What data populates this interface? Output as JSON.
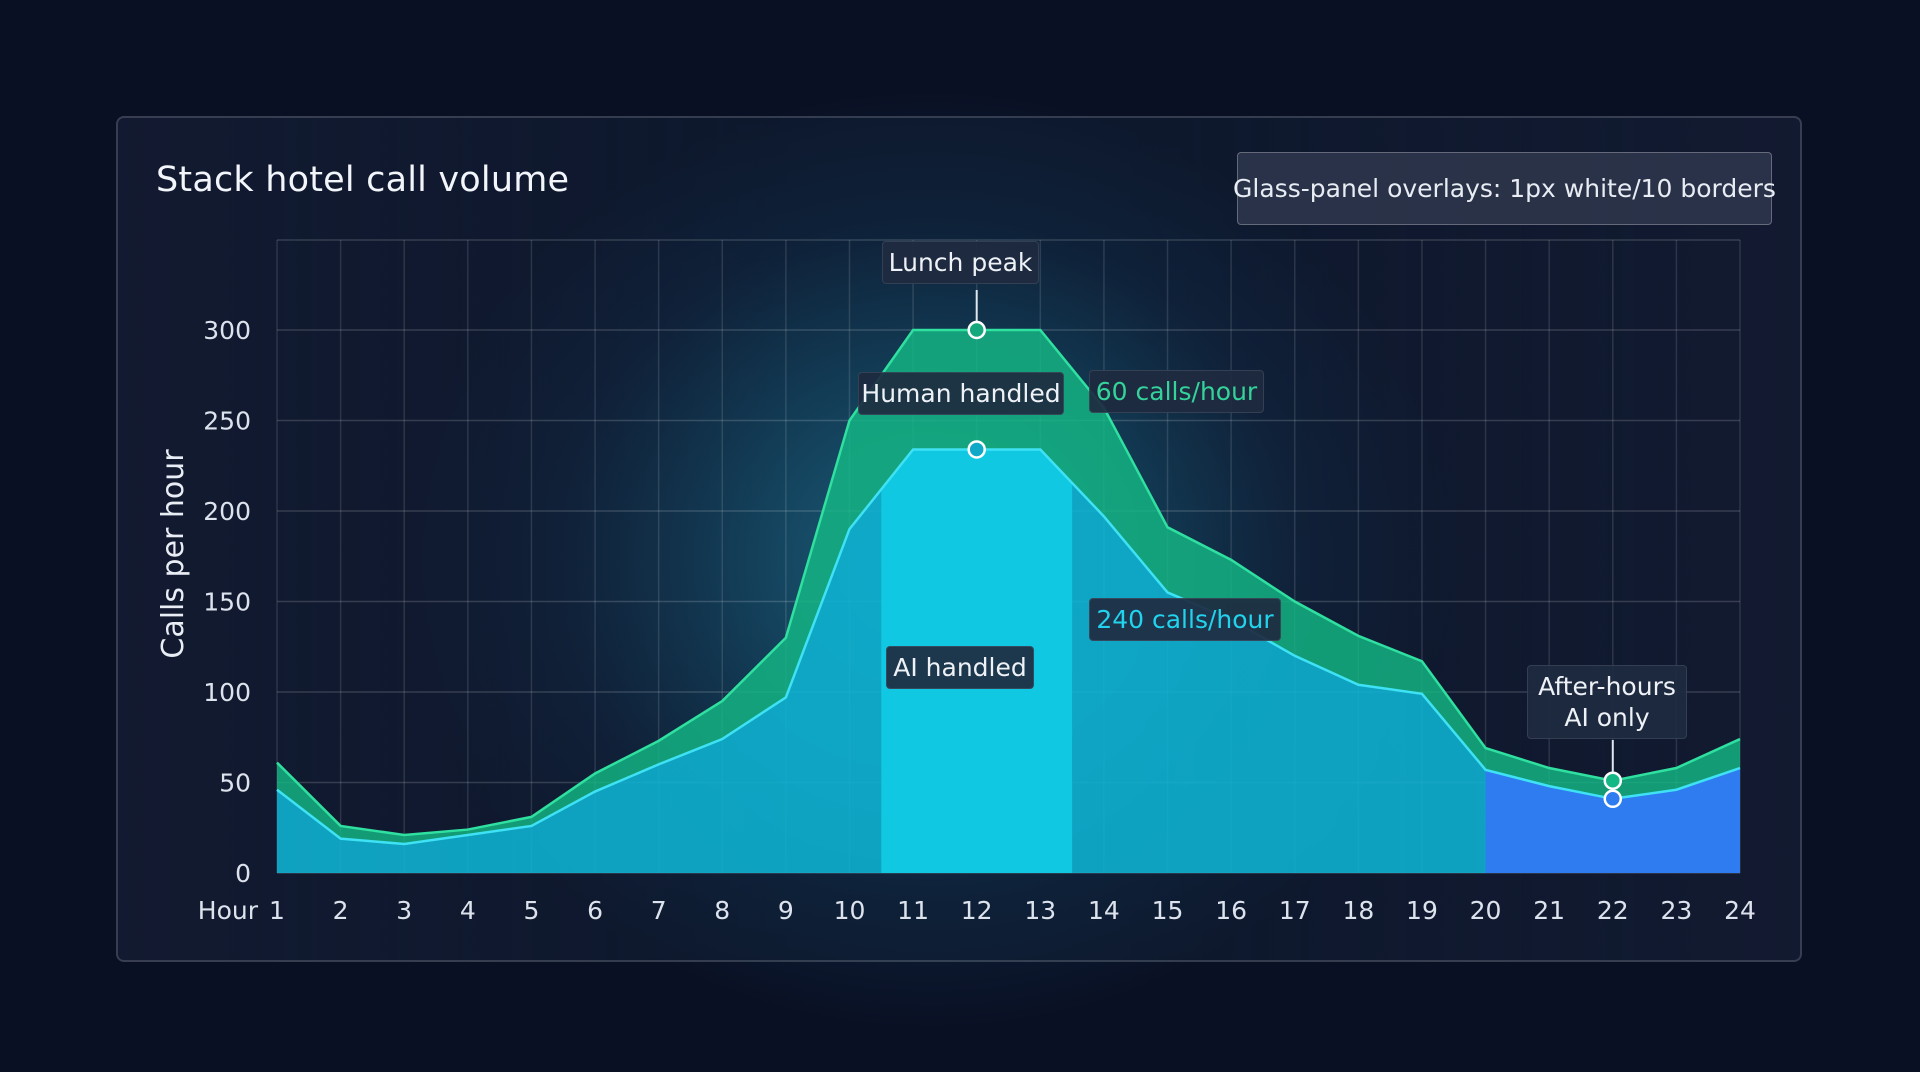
{
  "title": "Stack hotel call volume",
  "note": "Glass-panel overlays: 1px white/10 borders",
  "colors": {
    "human": "#14b885",
    "human_line": "#2fe0a0",
    "ai": "#0fb4d4",
    "ai_line": "#3ee2f4",
    "ai_peak": "#10c8e2",
    "after_hours": "#2f7cf0",
    "grid": "#ffffff"
  },
  "annotations": {
    "lunch_peak": "Lunch peak",
    "human_handled": "Human handled",
    "human_rate": "60 calls/hour",
    "ai_handled": "AI handled",
    "ai_rate": "240 calls/hour",
    "after_hours_line1": "After-hours",
    "after_hours_line2": "AI only"
  },
  "chart_data": {
    "type": "area",
    "stacked": true,
    "title": "Stack hotel call volume",
    "xlabel": "Hour",
    "ylabel": "Calls per hour",
    "x": [
      1,
      2,
      3,
      4,
      5,
      6,
      7,
      8,
      9,
      10,
      11,
      12,
      13,
      14,
      15,
      16,
      17,
      18,
      19,
      20,
      21,
      22,
      23,
      24
    ],
    "xticks": [
      "1",
      "2",
      "3",
      "4",
      "5",
      "6",
      "7",
      "8",
      "9",
      "10",
      "11",
      "12",
      "13",
      "14",
      "15",
      "16",
      "17",
      "18",
      "19",
      "20",
      "21",
      "22",
      "23",
      "24"
    ],
    "yticks": [
      0,
      50,
      100,
      150,
      200,
      250,
      300
    ],
    "ylim": [
      0,
      350
    ],
    "grid": true,
    "series": [
      {
        "name": "AI handled",
        "values": [
          46,
          19,
          16,
          21,
          26,
          45,
          60,
          74,
          97,
          190,
          234,
          234,
          234,
          197,
          155,
          140,
          120,
          104,
          99,
          57,
          48,
          41,
          46,
          58
        ]
      },
      {
        "name": "Human handled",
        "values": [
          15,
          7,
          5,
          3,
          5,
          10,
          13,
          21,
          33,
          60,
          66,
          66,
          66,
          60,
          36,
          33,
          30,
          27,
          18,
          12,
          10,
          10,
          12,
          16
        ]
      }
    ],
    "highlight_ranges": [
      {
        "label": "Lunch peak",
        "from": 10.5,
        "to": 13.5
      },
      {
        "label": "After-hours AI only",
        "from": 20,
        "to": 24
      }
    ]
  }
}
